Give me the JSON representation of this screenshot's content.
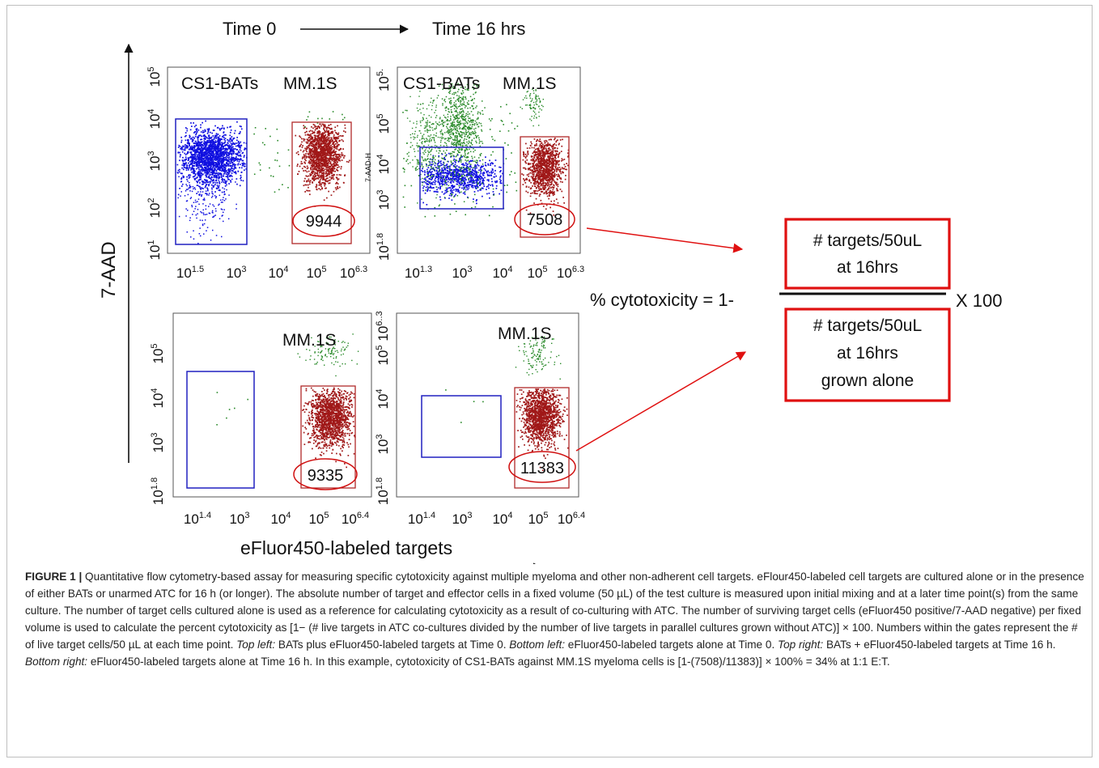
{
  "figure": {
    "time_start": "Time 0",
    "time_end": "Time 16 hrs",
    "y_axis_label": "7-AAD",
    "x_axis_label": "eFluor450-labeled targets",
    "panels": [
      {
        "id": "top-left",
        "labels": [
          "CS1-BATs",
          "MM.1S"
        ],
        "y_ticks": [
          "10^5",
          "10^4",
          "10^3",
          "10^2",
          "10^1"
        ],
        "x_ticks": [
          "10^1.5",
          "10^3",
          "10^4",
          "10^5",
          "10^6.3"
        ],
        "count": "9944"
      },
      {
        "id": "top-right",
        "labels": [
          "CS1-BATs",
          "MM.1S"
        ],
        "y_ticks": [
          "10^5.",
          "10^5",
          "10^4",
          "10^3",
          "10^1.8"
        ],
        "y_side_label": "7-AAD-H",
        "x_ticks": [
          "10^1.3",
          "10^3",
          "10^4",
          "10^5",
          "10^6.3"
        ],
        "count": "7508"
      },
      {
        "id": "bottom-left",
        "labels": [
          "MM.1S"
        ],
        "y_ticks": [
          "10^5",
          "10^4",
          "10^3",
          "10^1.8"
        ],
        "x_ticks": [
          "10^1.4",
          "10^3",
          "10^4",
          "10^5",
          "10^6.4"
        ],
        "count": "9335"
      },
      {
        "id": "bottom-right",
        "labels": [
          "MM.1S"
        ],
        "y_ticks": [
          "10^6..3",
          "10^5",
          "10^4",
          "10^3",
          "10^1.8"
        ],
        "x_ticks": [
          "10^1.4",
          "10^3",
          "10^4",
          "10^5",
          "10^6.4"
        ],
        "count": "11383"
      }
    ],
    "formula": {
      "lhs": "% cytotoxicity = 1-",
      "numerator": [
        "# targets/50uL",
        "at 16hrs"
      ],
      "denominator": [
        "# targets/50uL",
        "at 16hrs",
        "grown alone"
      ],
      "multiplier": "X 100"
    },
    "colors": {
      "blue_cells": "#1010e0",
      "red_cells": "#a01818",
      "green_cells": "#2a8a2a",
      "box_red": "#e01010",
      "gate_blue": "#2020c0",
      "gate_red": "#b02a2a"
    }
  },
  "caption": {
    "label": "FIGURE 1 |",
    "title": " Quantitative flow cytometry-based assay for measuring specific cytotoxicity against multiple myeloma and other non-adherent cell targets.",
    "body": " eFlour450-labeled cell targets are cultured alone or in the presence of either BATs or unarmed ATC for 16 h (or longer). The absolute number of target and effector cells in a fixed volume (50 µL) of the test culture is measured upon initial mixing and at a later time point(s) from the same culture. The number of target cells cultured alone is used as a reference for calculating cytotoxicity as a result of co-culturing with ATC. The number of surviving target cells (eFluor450 positive/7-AAD negative) per fixed volume is used to calculate the percent cytotoxicity as [1− (# live targets in ATC co-cultures divided by the number of live targets in parallel cultures grown without ATC)] × 100. Numbers within the gates represent the # of live target cells/50 µL at each time point.",
    "tl_label": "Top left:",
    "tl_text": " BATs plus eFluor450-labeled targets at Time 0.",
    "bl_label": "Bottom left:",
    "bl_text": " eFluor450-labeled targets alone at Time 0.",
    "tr_label": "Top right:",
    "tr_text": " BATs + eFluor450-labeled targets at Time 16 h.",
    "br_label": "Bottom right:",
    "br_text": " eFluor450-labeled targets alone at Time 16 h. In this example, cytotoxicity of CS1-BATs against MM.1S myeloma cells is [1-(7508)/11383)] × 100% = 34% at 1:1 E:T."
  }
}
